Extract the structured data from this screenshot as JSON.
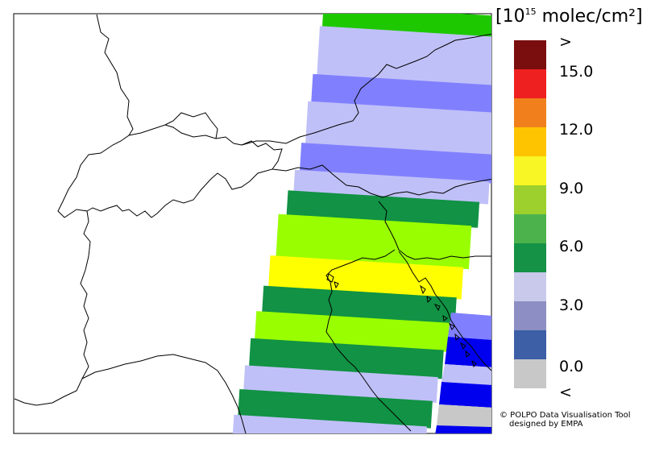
{
  "legend": {
    "title_prefix": "[10",
    "title_exp": "15",
    "title_suffix": " molec/cm²]",
    "tick_labels": [
      ">",
      "15.0",
      "12.0",
      "9.0",
      "6.0",
      "3.0",
      "0.0",
      "<"
    ],
    "swatches": [
      {
        "name": "above-max",
        "color": "#7a0e0e"
      },
      {
        "name": "13.5-15.0",
        "color": "#ee2020"
      },
      {
        "name": "12.0-13.5",
        "color": "#f07f1c"
      },
      {
        "name": "10.5-12.0",
        "color": "#ffc400"
      },
      {
        "name": "9.0-10.5",
        "color": "#f8f624"
      },
      {
        "name": "7.5-9.0",
        "color": "#9dd02c"
      },
      {
        "name": "6.0-7.5",
        "color": "#4cb24c"
      },
      {
        "name": "4.5-6.0",
        "color": "#159245"
      },
      {
        "name": "3.0-4.5",
        "color": "#c9c9ec"
      },
      {
        "name": "1.5-3.0",
        "color": "#8d8fc4"
      },
      {
        "name": "0.0-1.5",
        "color": "#3c5fa6"
      },
      {
        "name": "below-min",
        "color": "#c8c8c8"
      }
    ]
  },
  "credits": {
    "line1": "© POLPO Data Visualisation Tool",
    "line2": "designed by EMPA"
  },
  "colors": {
    "lavender": "#c0c0f8",
    "blue_medium": "#8080ff",
    "blue_strong": "#0000ee",
    "green_dark": "#119244",
    "green_lime": "#99ff00",
    "yellow": "#ffff00",
    "gray": "#c8c8c8",
    "outline": "#000000"
  }
}
